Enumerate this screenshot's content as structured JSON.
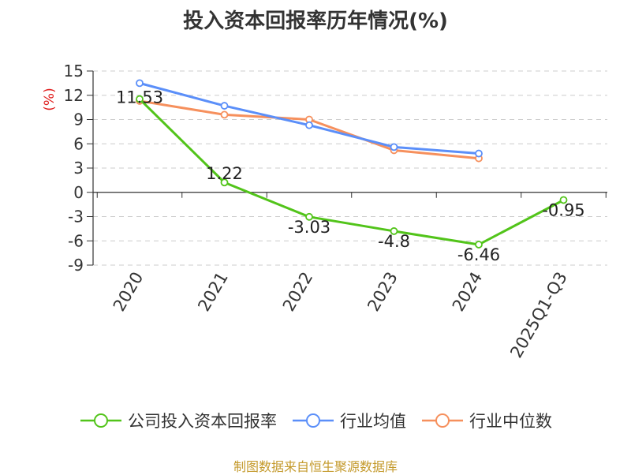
{
  "chart_data": {
    "type": "line",
    "title": "投入资本回报率历年情况(%)",
    "ylabel": "(%)",
    "xlabel": "",
    "categories": [
      "2020",
      "2021",
      "2022",
      "2023",
      "2024",
      "2025Q1-Q3"
    ],
    "ylim": [
      -9,
      15
    ],
    "yticks": [
      15,
      12,
      9,
      6,
      3,
      0,
      -3,
      -6,
      -9
    ],
    "grid": true,
    "legend_position": "bottom",
    "series": [
      {
        "name": "公司投入资本回报率",
        "color": "#52c41a",
        "values": [
          11.53,
          1.22,
          -3.03,
          -4.8,
          -6.46,
          -0.95
        ],
        "data_labels": [
          "11.53",
          "1.22",
          "-3.03",
          "-4.8",
          "-6.46",
          "-0.95"
        ]
      },
      {
        "name": "行业均值",
        "color": "#5b8ff9",
        "values": [
          13.5,
          10.7,
          8.3,
          5.6,
          4.8,
          null
        ]
      },
      {
        "name": "行业中位数",
        "color": "#f6905d",
        "values": [
          11.3,
          9.6,
          9.0,
          5.2,
          4.2,
          null
        ]
      }
    ]
  },
  "source": {
    "text": "制图数据来自恒生聚源数据库",
    "color": "#c49a2c"
  },
  "colors": {
    "axis": "#333333",
    "grid": "#cccccc",
    "ylabel": "#e02020"
  }
}
